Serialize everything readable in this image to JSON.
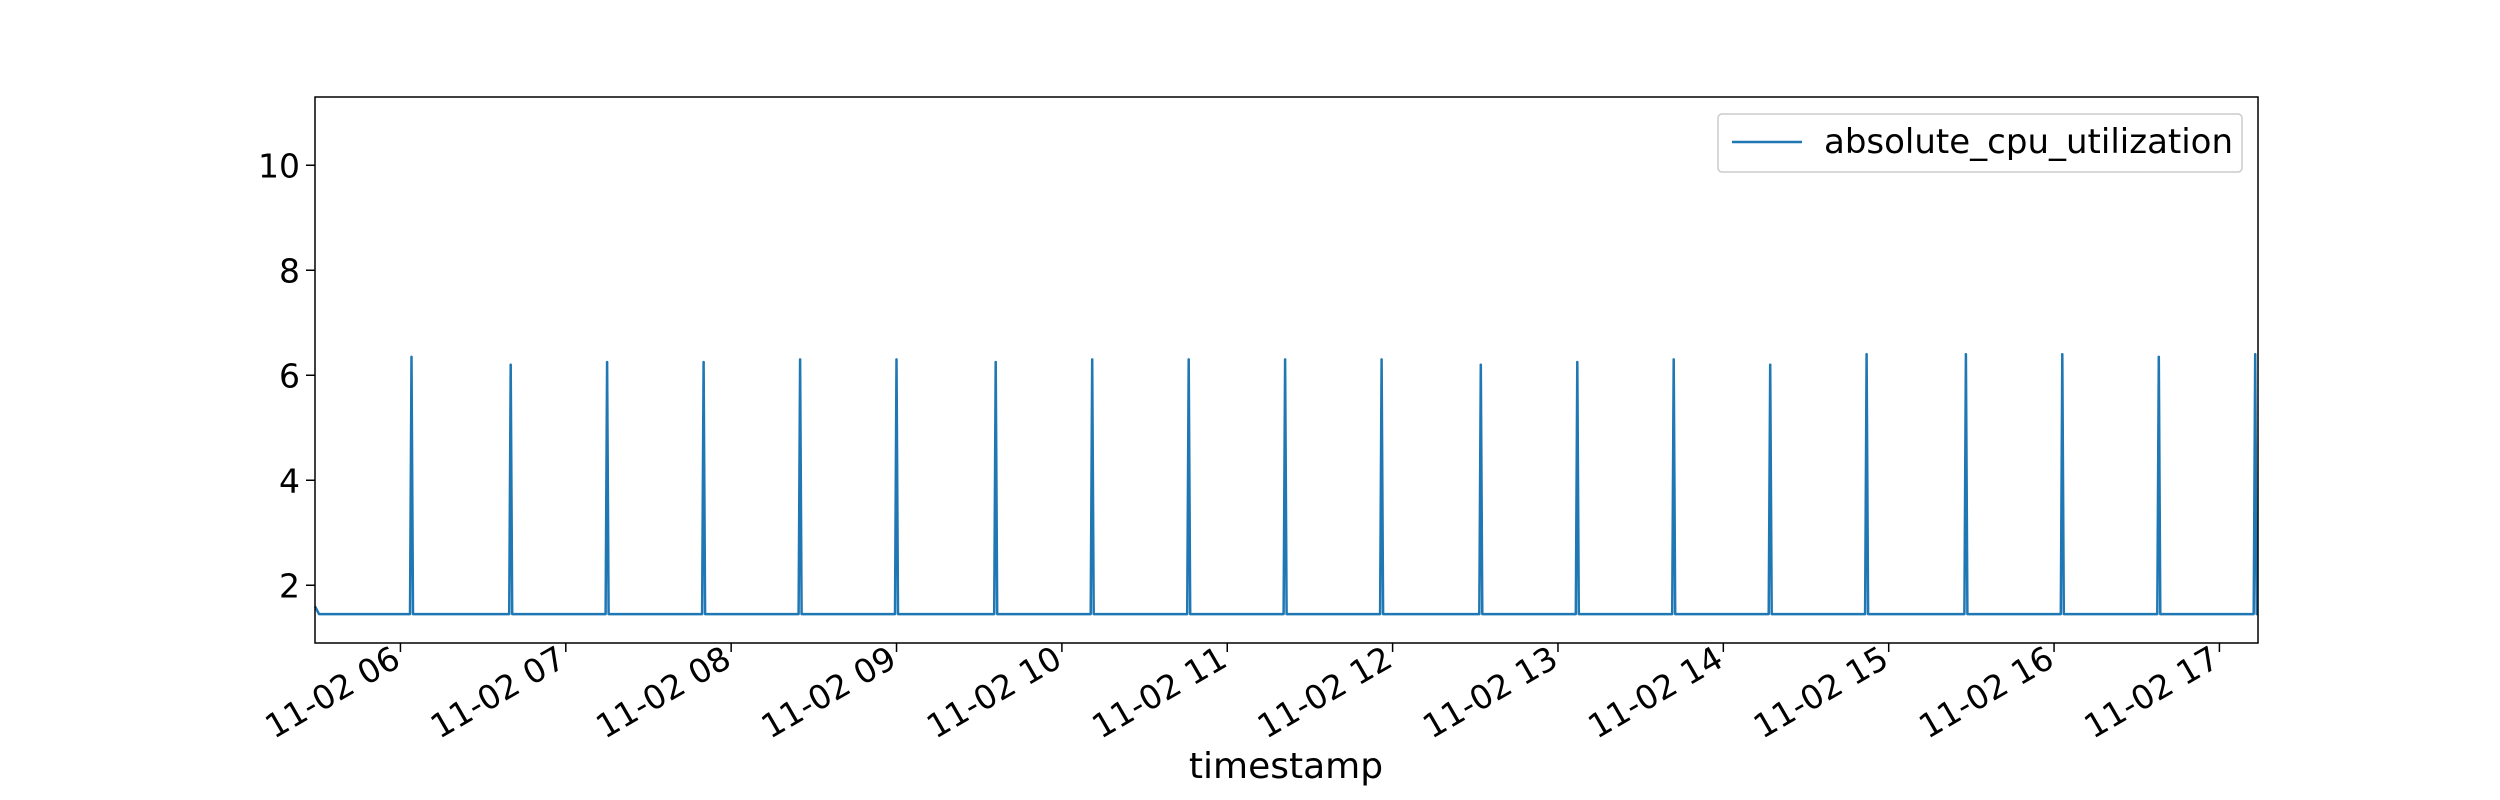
{
  "chart_data": {
    "type": "line",
    "title": "",
    "xlabel": "timestamp",
    "ylabel": "",
    "x_range": [
      "11-02 05:29",
      "11-02 17:14"
    ],
    "ylim": [
      0.9,
      11.3
    ],
    "yticks": [
      2,
      4,
      6,
      8,
      10
    ],
    "xticks": [
      {
        "value": "11-02 06:00",
        "label": "11-02 06"
      },
      {
        "value": "11-02 07:00",
        "label": "11-02 07"
      },
      {
        "value": "11-02 08:00",
        "label": "11-02 08"
      },
      {
        "value": "11-02 09:00",
        "label": "11-02 09"
      },
      {
        "value": "11-02 10:00",
        "label": "11-02 10"
      },
      {
        "value": "11-02 11:00",
        "label": "11-02 11"
      },
      {
        "value": "11-02 12:00",
        "label": "11-02 12"
      },
      {
        "value": "11-02 13:00",
        "label": "11-02 13"
      },
      {
        "value": "11-02 14:00",
        "label": "11-02 14"
      },
      {
        "value": "11-02 15:00",
        "label": "11-02 15"
      },
      {
        "value": "11-02 16:00",
        "label": "11-02 16"
      },
      {
        "value": "11-02 17:00",
        "label": "11-02 17"
      }
    ],
    "grid": false,
    "legend": {
      "position": "top-right"
    },
    "series": [
      {
        "name": "absolute_cpu_utilization",
        "color": "#1f77b4",
        "baseline": 1.45,
        "spikes": [
          {
            "x": "11-02 06:04",
            "y": 6.35
          },
          {
            "x": "11-02 06:40",
            "y": 6.2
          },
          {
            "x": "11-02 07:15",
            "y": 6.25
          },
          {
            "x": "11-02 07:50",
            "y": 6.25
          },
          {
            "x": "11-02 08:25",
            "y": 6.3
          },
          {
            "x": "11-02 09:00",
            "y": 6.3
          },
          {
            "x": "11-02 09:36",
            "y": 6.25
          },
          {
            "x": "11-02 10:11",
            "y": 6.3
          },
          {
            "x": "11-02 10:46",
            "y": 6.3
          },
          {
            "x": "11-02 11:21",
            "y": 6.3
          },
          {
            "x": "11-02 11:56",
            "y": 6.3
          },
          {
            "x": "11-02 12:32",
            "y": 6.2
          },
          {
            "x": "11-02 13:07",
            "y": 6.25
          },
          {
            "x": "11-02 13:42",
            "y": 6.3
          },
          {
            "x": "11-02 14:17",
            "y": 6.2
          },
          {
            "x": "11-02 14:52",
            "y": 6.4
          },
          {
            "x": "11-02 15:28",
            "y": 6.4
          },
          {
            "x": "11-02 16:03",
            "y": 6.4
          },
          {
            "x": "11-02 16:38",
            "y": 6.35
          },
          {
            "x": "11-02 17:13",
            "y": 6.4
          }
        ]
      }
    ]
  }
}
